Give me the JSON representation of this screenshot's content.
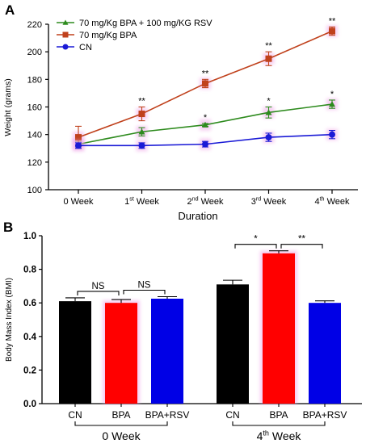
{
  "chart_data": [
    {
      "panel": "A",
      "type": "line",
      "ylabel": "Weight (grams)",
      "xlabel": "Duration",
      "x_tick_labels": [
        {
          "base": "0 Week",
          "sup": "",
          "rest": ""
        },
        {
          "base": "1",
          "sup": "st",
          "rest": " Week"
        },
        {
          "base": "2",
          "sup": "nd",
          "rest": " Week"
        },
        {
          "base": "3",
          "sup": "rd",
          "rest": " Week"
        },
        {
          "base": "4",
          "sup": "th",
          "rest": " Week"
        }
      ],
      "ylim": [
        100,
        220
      ],
      "yticks": [
        100,
        120,
        140,
        160,
        180,
        200,
        220
      ],
      "legend_position": "top-left",
      "series": [
        {
          "name": "70 mg/Kg BPA + 100 mg/KG RSV",
          "color": "#2e8b1e",
          "marker": "triangle",
          "values": [
            133,
            142,
            147,
            156,
            162
          ],
          "errors": [
            2,
            3,
            1,
            4,
            3
          ],
          "annotations": [
            "",
            "",
            "*",
            "*",
            "*"
          ]
        },
        {
          "name": "70 mg/Kg BPA",
          "color": "#c0411c",
          "marker": "square",
          "values": [
            138,
            155,
            177,
            195,
            215
          ],
          "errors": [
            8,
            5,
            3,
            5,
            3
          ],
          "annotations": [
            "",
            "**",
            "**",
            "**",
            "**"
          ]
        },
        {
          "name": "CN",
          "color": "#1a1ad6",
          "marker": "circle",
          "values": [
            132,
            132,
            133,
            138,
            140
          ],
          "errors": [
            2,
            2,
            2,
            3,
            3
          ],
          "annotations": [
            "",
            "",
            "",
            "",
            ""
          ]
        }
      ]
    },
    {
      "panel": "B",
      "type": "bar",
      "ylabel": "Body Mass Index (BMI)",
      "ylim": [
        0.0,
        1.0
      ],
      "yticks": [
        "0.0",
        "0.2",
        "0.4",
        "0.6",
        "0.8",
        "1.0"
      ],
      "groups": [
        {
          "label_base": "0 Week",
          "label_sup": "",
          "label_rest": "",
          "bars": [
            {
              "category": "CN",
              "value": 0.61,
              "error": 0.02,
              "color": "#000000"
            },
            {
              "category": "BPA",
              "value": 0.6,
              "error": 0.02,
              "color": "#ff0000"
            },
            {
              "category": "BPA+RSV",
              "value": 0.625,
              "error": 0.012,
              "color": "#0000e6"
            }
          ],
          "comparisons": [
            {
              "from": 0,
              "to": 1,
              "label": "NS"
            },
            {
              "from": 1,
              "to": 2,
              "label": "NS"
            }
          ]
        },
        {
          "label_base": "4",
          "label_sup": "th",
          "label_rest": " Week",
          "bars": [
            {
              "category": "CN",
              "value": 0.71,
              "error": 0.025,
              "color": "#000000"
            },
            {
              "category": "BPA",
              "value": 0.895,
              "error": 0.015,
              "color": "#ff0000"
            },
            {
              "category": "BPA+RSV",
              "value": 0.6,
              "error": 0.012,
              "color": "#0000e6"
            }
          ],
          "comparisons": [
            {
              "from": 0,
              "to": 1,
              "label": "*"
            },
            {
              "from": 1,
              "to": 2,
              "label": "**"
            }
          ]
        }
      ]
    }
  ]
}
